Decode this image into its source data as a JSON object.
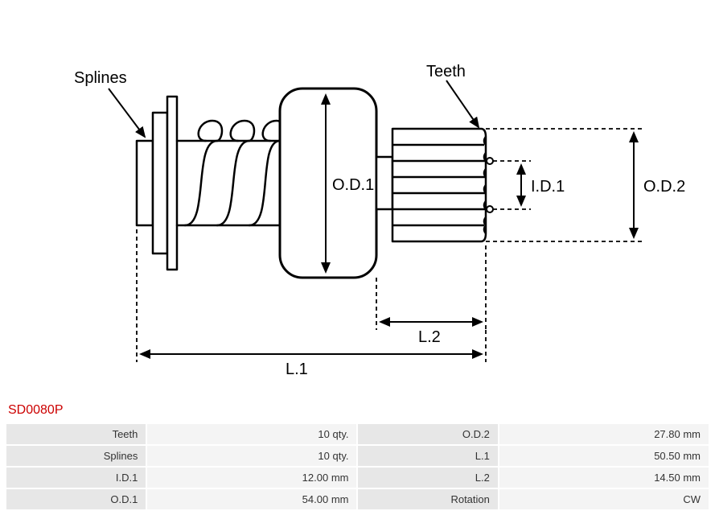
{
  "part_number": "SD0080P",
  "diagram": {
    "labels": {
      "splines": "Splines",
      "teeth": "Teeth",
      "od1": "O.D.1",
      "od2": "O.D.2",
      "id1": "I.D.1",
      "l1": "L.1",
      "l2": "L.2"
    },
    "stroke_color": "#000000",
    "stroke_width": 2,
    "dash_pattern": "5,4",
    "font_family": "Arial",
    "label_fontsize": 20,
    "dim_fontsize": 20
  },
  "specs": {
    "rows": [
      {
        "label_a": "Teeth",
        "value_a": "10 qty.",
        "label_b": "O.D.2",
        "value_b": "27.80 mm"
      },
      {
        "label_a": "Splines",
        "value_a": "10 qty.",
        "label_b": "L.1",
        "value_b": "50.50 mm"
      },
      {
        "label_a": "I.D.1",
        "value_a": "12.00 mm",
        "label_b": "L.2",
        "value_b": "14.50 mm"
      },
      {
        "label_a": "O.D.1",
        "value_a": "54.00 mm",
        "label_b": "Rotation",
        "value_b": "CW"
      }
    ],
    "label_bg": "#e7e7e7",
    "value_bg": "#f4f4f4",
    "text_color": "#333333",
    "fontsize": 13
  }
}
